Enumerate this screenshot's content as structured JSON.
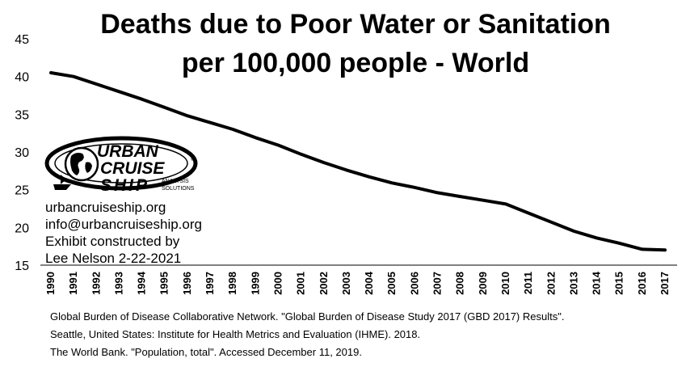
{
  "chart_data": {
    "type": "line",
    "title_line1": "Deaths due to Poor Water or Sanitation",
    "title_line2": "per 100,000 people - World",
    "x": [
      1990,
      1991,
      1992,
      1993,
      1994,
      1995,
      1996,
      1997,
      1998,
      1999,
      2000,
      2001,
      2002,
      2003,
      2004,
      2005,
      2006,
      2007,
      2008,
      2009,
      2010,
      2011,
      2012,
      2013,
      2014,
      2015,
      2016,
      2017
    ],
    "x_tick_labels": [
      "1990",
      "1991",
      "1992",
      "1993",
      "1994",
      "1995",
      "1996",
      "1997",
      "1998",
      "1999",
      "2000",
      "2001",
      "2002",
      "2003",
      "2004",
      "2005",
      "2006",
      "2007",
      "2008",
      "2009",
      "2010",
      "2011",
      "2012",
      "2013",
      "2014",
      "2015",
      "2016",
      "2017"
    ],
    "values": [
      40.5,
      40.0,
      39.0,
      38.0,
      37.0,
      35.9,
      34.8,
      33.9,
      33.0,
      31.9,
      30.9,
      29.7,
      28.6,
      27.6,
      26.7,
      25.9,
      25.3,
      24.6,
      24.1,
      23.6,
      23.1,
      21.9,
      20.7,
      19.5,
      18.6,
      17.9,
      17.1,
      17.0
    ],
    "y_ticks": [
      "15",
      "20",
      "25",
      "30",
      "35",
      "40",
      "45"
    ],
    "ylim": [
      15,
      45
    ],
    "grid": false,
    "line_color": "#000000"
  },
  "logo": {
    "line1": "URBAN",
    "line2": "CRUISE",
    "line3": "SHIP",
    "tag1": "ANALYSIS",
    "tag2": "SOLUTIONS",
    "mark": "©"
  },
  "info": {
    "website": "urbancruiseship.org",
    "email": "info@urbancruiseship.org",
    "credit1": "Exhibit constructed by",
    "credit2": "Lee Nelson 2-22-2021"
  },
  "sources": {
    "line1": "Global Burden of Disease Collaborative Network. \"Global Burden of Disease Study 2017 (GBD 2017) Results\".",
    "line2": "Seattle, United States: Institute for Health Metrics and Evaluation (IHME). 2018.",
    "line3": "The World Bank. \"Population, total\". Accessed December 11, 2019."
  }
}
